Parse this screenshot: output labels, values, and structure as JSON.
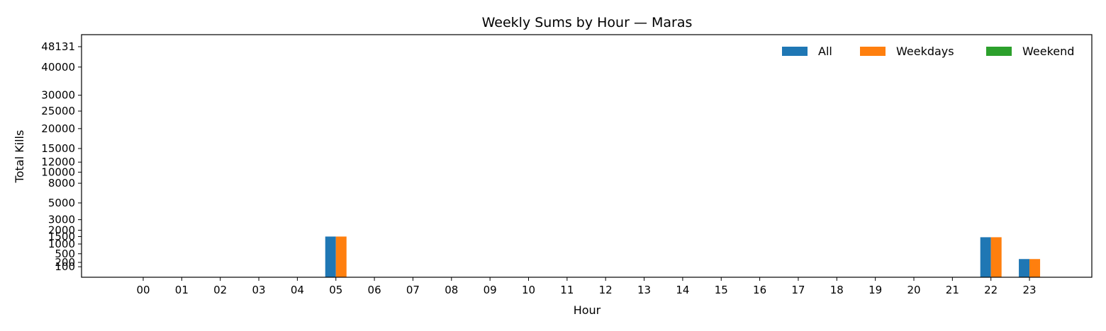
{
  "chart_data": {
    "type": "bar",
    "title": "Weekly Sums by Hour — Maras",
    "xlabel": "Hour",
    "ylabel": "Total Kills",
    "categories": [
      "00",
      "01",
      "02",
      "03",
      "04",
      "05",
      "06",
      "07",
      "08",
      "09",
      "10",
      "11",
      "12",
      "13",
      "14",
      "15",
      "16",
      "17",
      "18",
      "19",
      "20",
      "21",
      "22",
      "23"
    ],
    "yticks": [
      100,
      200,
      500,
      1000,
      1500,
      2000,
      3000,
      5000,
      8000,
      10000,
      12000,
      15000,
      20000,
      25000,
      30000,
      40000,
      48131
    ],
    "ylim": [
      0,
      48131
    ],
    "yscale": "sqrt",
    "grid": false,
    "legend_position": "top-right",
    "series": [
      {
        "name": "All",
        "color": "#1f77b4",
        "values": [
          0,
          0,
          0,
          0,
          0,
          1500,
          0,
          0,
          0,
          0,
          0,
          0,
          0,
          0,
          0,
          0,
          0,
          0,
          0,
          0,
          0,
          0,
          1450,
          300
        ]
      },
      {
        "name": "Weekdays",
        "color": "#ff7f0e",
        "values": [
          0,
          0,
          0,
          0,
          0,
          1500,
          0,
          0,
          0,
          0,
          0,
          0,
          0,
          0,
          0,
          0,
          0,
          0,
          0,
          0,
          0,
          0,
          1450,
          300
        ]
      },
      {
        "name": "Weekend",
        "color": "#2ca02c",
        "values": [
          0,
          0,
          0,
          0,
          0,
          0,
          0,
          0,
          0,
          0,
          0,
          0,
          0,
          0,
          0,
          0,
          0,
          0,
          0,
          0,
          0,
          0,
          0,
          0
        ]
      }
    ]
  }
}
